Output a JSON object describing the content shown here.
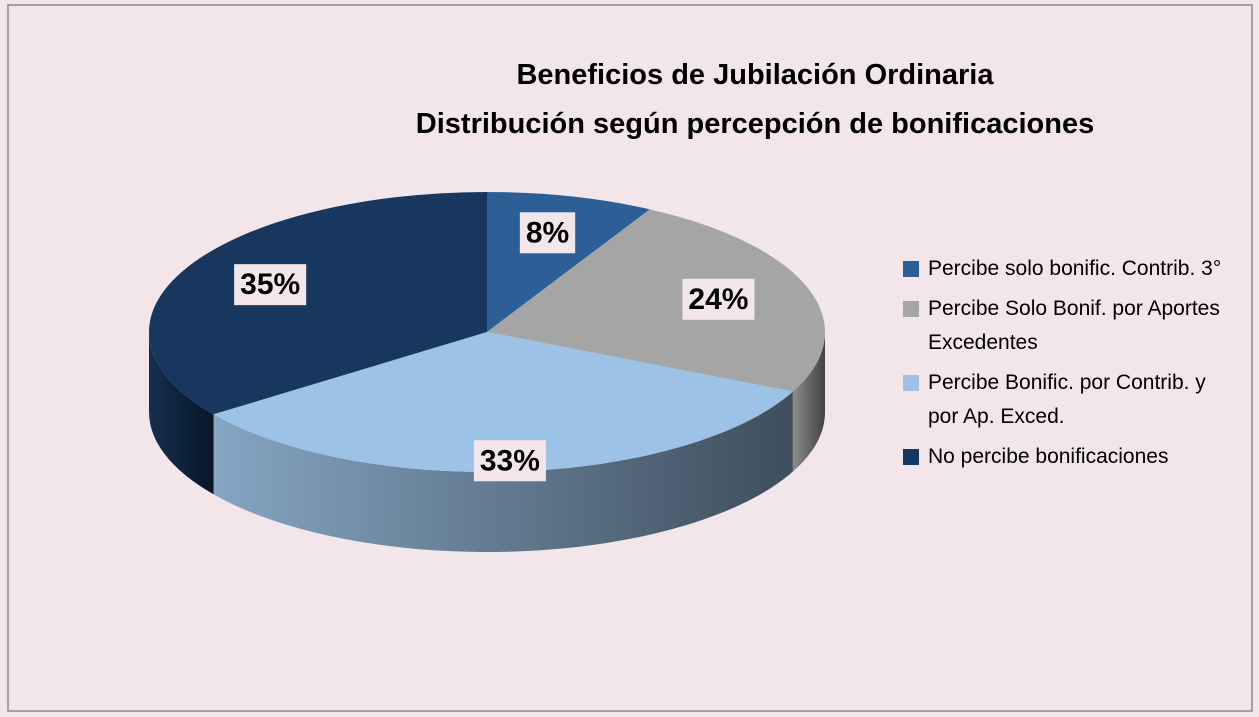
{
  "chart_data": {
    "type": "pie3d",
    "title": "Beneficios de Jubilación Ordinaria",
    "subtitle": "Distribución según percepción de bonificaciones",
    "categories": [
      "Percibe solo bonific. Contrib. 3°",
      "Percibe Solo Bonif. por Aportes Excedentes",
      "Percibe Bonific. por Contrib. y por Ap. Exced.",
      "No percibe bonificaciones"
    ],
    "values": [
      8,
      24,
      33,
      35
    ],
    "value_labels": [
      "8%",
      "24%",
      "33%",
      "35%"
    ],
    "colors": [
      "#2b5f95",
      "#a5a5a5",
      "#9cc2e5",
      "#17375e"
    ],
    "legend": "right"
  }
}
